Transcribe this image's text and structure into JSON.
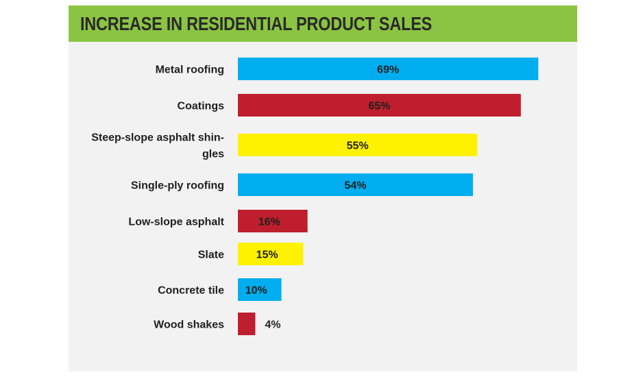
{
  "colors": {
    "title_bar": "#8bc442",
    "panel_background": "#f2f2f2",
    "blue": "#00aeef",
    "red": "#be1e2d",
    "yellow": "#fff200",
    "white_text": "#ffffff",
    "dark_text": "#1f1f1f"
  },
  "chart_data": {
    "type": "bar",
    "orientation": "horizontal",
    "title": "INCREASE IN RESIDENTIAL PRODUCT SALES",
    "categories": [
      [
        "Metal roofing"
      ],
      [
        "Coatings"
      ],
      [
        "Steep-slope asphalt shin-",
        "gles"
      ],
      [
        "Single-ply roofing"
      ],
      [
        "Low-slope asphalt"
      ],
      [
        "Slate"
      ],
      [
        "Concrete tile"
      ],
      [
        "Wood shakes"
      ]
    ],
    "values": [
      69,
      65,
      55,
      54,
      16,
      15,
      10,
      4
    ],
    "value_labels": [
      "69%",
      "65%",
      "55%",
      "54%",
      "16%",
      "15%",
      "10%",
      "4%"
    ],
    "bar_colors": [
      "#00aeef",
      "#be1e2d",
      "#fff200",
      "#00aeef",
      "#be1e2d",
      "#fff200",
      "#00aeef",
      "#be1e2d"
    ],
    "label_colors": [
      "#ffffff",
      "#ffffff",
      "#1f1f1f",
      "#1f1f1f",
      "#ffffff",
      "#1f1f1f",
      "#1f1f1f",
      "#1f1f1f"
    ],
    "xlim": [
      0,
      100
    ],
    "xlabel": "",
    "ylabel": "",
    "grid": false,
    "legend": "none"
  }
}
